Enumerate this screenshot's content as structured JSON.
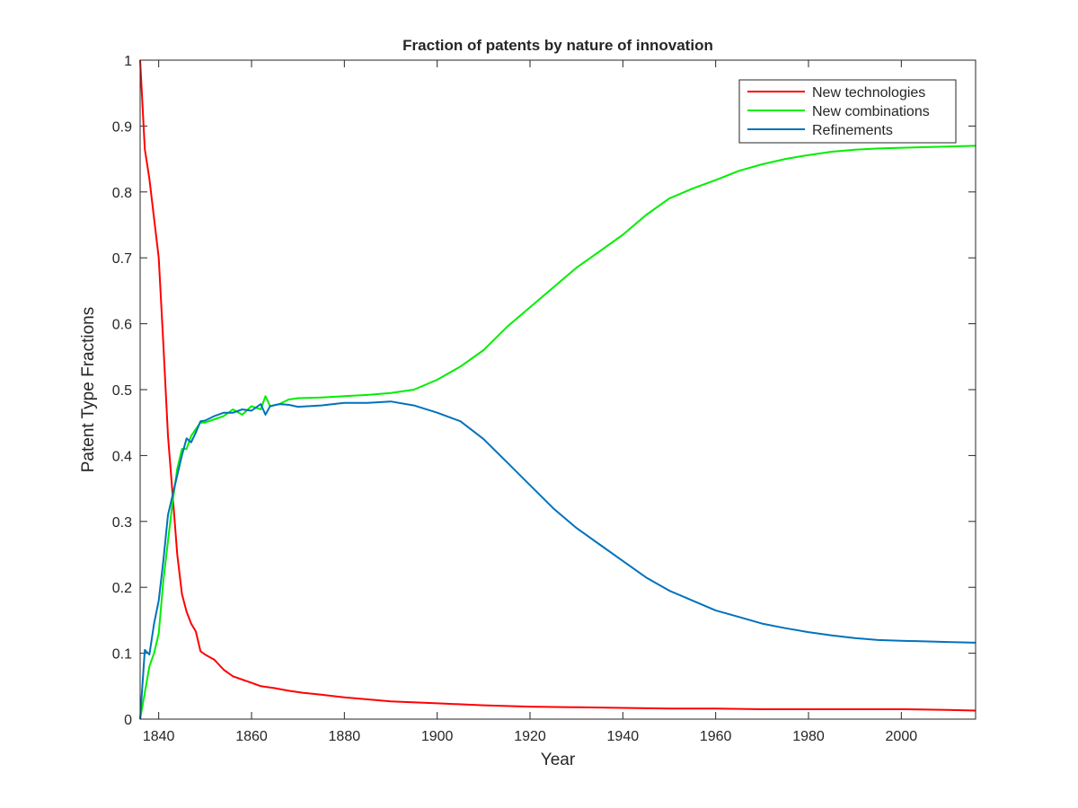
{
  "chart_data": {
    "type": "line",
    "title": "Fraction of patents by nature of innovation",
    "xlabel": "Year",
    "ylabel": "Patent Type Fractions",
    "xlim": [
      1836,
      2016
    ],
    "ylim": [
      0,
      1
    ],
    "xticks": [
      1840,
      1860,
      1880,
      1900,
      1920,
      1940,
      1960,
      1980,
      2000
    ],
    "xtick_labels": [
      "1840",
      "1860",
      "1880",
      "1900",
      "1920",
      "1940",
      "1960",
      "1980",
      "2000"
    ],
    "yticks": [
      0,
      0.1,
      0.2,
      0.3,
      0.4,
      0.5,
      0.6,
      0.7,
      0.8,
      0.9,
      1
    ],
    "ytick_labels": [
      "0",
      "0.1",
      "0.2",
      "0.3",
      "0.4",
      "0.5",
      "0.6",
      "0.7",
      "0.8",
      "0.9",
      "1"
    ],
    "grid": false,
    "legend_position": "top-right",
    "series": [
      {
        "name": "New technologies",
        "color": "#ff0000",
        "x": [
          1836,
          1837,
          1838,
          1839,
          1840,
          1841,
          1842,
          1843,
          1844,
          1845,
          1846,
          1847,
          1848,
          1849,
          1850,
          1852,
          1854,
          1856,
          1858,
          1860,
          1862,
          1865,
          1868,
          1871,
          1875,
          1880,
          1885,
          1890,
          1900,
          1910,
          1920,
          1930,
          1940,
          1950,
          1960,
          1970,
          1980,
          1990,
          2000,
          2010,
          2016
        ],
        "y": [
          1.0,
          0.865,
          0.82,
          0.76,
          0.7,
          0.57,
          0.43,
          0.34,
          0.25,
          0.19,
          0.163,
          0.145,
          0.133,
          0.103,
          0.098,
          0.09,
          0.075,
          0.065,
          0.06,
          0.055,
          0.05,
          0.047,
          0.043,
          0.04,
          0.037,
          0.033,
          0.03,
          0.027,
          0.024,
          0.021,
          0.019,
          0.018,
          0.017,
          0.016,
          0.016,
          0.015,
          0.015,
          0.015,
          0.015,
          0.014,
          0.013
        ]
      },
      {
        "name": "New combinations",
        "color": "#00ee00",
        "x": [
          1836,
          1837,
          1838,
          1839,
          1840,
          1841,
          1842,
          1843,
          1844,
          1845,
          1846,
          1847,
          1848,
          1849,
          1850,
          1852,
          1854,
          1856,
          1858,
          1860,
          1862,
          1863,
          1864,
          1866,
          1868,
          1870,
          1875,
          1880,
          1885,
          1890,
          1895,
          1900,
          1905,
          1910,
          1915,
          1920,
          1925,
          1930,
          1935,
          1940,
          1945,
          1950,
          1955,
          1960,
          1965,
          1970,
          1975,
          1980,
          1985,
          1990,
          1995,
          2000,
          2005,
          2010,
          2016
        ],
        "y": [
          0.0,
          0.04,
          0.08,
          0.1,
          0.13,
          0.21,
          0.27,
          0.33,
          0.38,
          0.41,
          0.41,
          0.43,
          0.44,
          0.45,
          0.45,
          0.455,
          0.46,
          0.47,
          0.462,
          0.475,
          0.47,
          0.49,
          0.475,
          0.478,
          0.485,
          0.487,
          0.488,
          0.49,
          0.492,
          0.495,
          0.5,
          0.515,
          0.535,
          0.56,
          0.595,
          0.625,
          0.655,
          0.685,
          0.71,
          0.735,
          0.765,
          0.79,
          0.805,
          0.818,
          0.832,
          0.842,
          0.85,
          0.856,
          0.861,
          0.864,
          0.866,
          0.867,
          0.868,
          0.869,
          0.87
        ]
      },
      {
        "name": "Refinements",
        "color": "#0072bd",
        "x": [
          1836,
          1837,
          1838,
          1839,
          1840,
          1841,
          1842,
          1843,
          1844,
          1845,
          1846,
          1847,
          1848,
          1849,
          1850,
          1852,
          1854,
          1856,
          1858,
          1860,
          1862,
          1863,
          1864,
          1866,
          1868,
          1870,
          1875,
          1880,
          1885,
          1890,
          1895,
          1900,
          1905,
          1910,
          1915,
          1920,
          1925,
          1930,
          1935,
          1940,
          1945,
          1950,
          1955,
          1960,
          1965,
          1970,
          1975,
          1980,
          1985,
          1990,
          1995,
          2000,
          2005,
          2010,
          2016
        ],
        "y": [
          0.0,
          0.105,
          0.098,
          0.145,
          0.18,
          0.24,
          0.31,
          0.34,
          0.37,
          0.4,
          0.426,
          0.42,
          0.435,
          0.452,
          0.453,
          0.46,
          0.465,
          0.465,
          0.47,
          0.468,
          0.478,
          0.462,
          0.475,
          0.478,
          0.477,
          0.474,
          0.476,
          0.48,
          0.48,
          0.482,
          0.476,
          0.465,
          0.452,
          0.425,
          0.39,
          0.355,
          0.32,
          0.29,
          0.265,
          0.24,
          0.215,
          0.195,
          0.18,
          0.165,
          0.155,
          0.145,
          0.138,
          0.132,
          0.127,
          0.123,
          0.12,
          0.119,
          0.118,
          0.117,
          0.116
        ]
      }
    ]
  }
}
